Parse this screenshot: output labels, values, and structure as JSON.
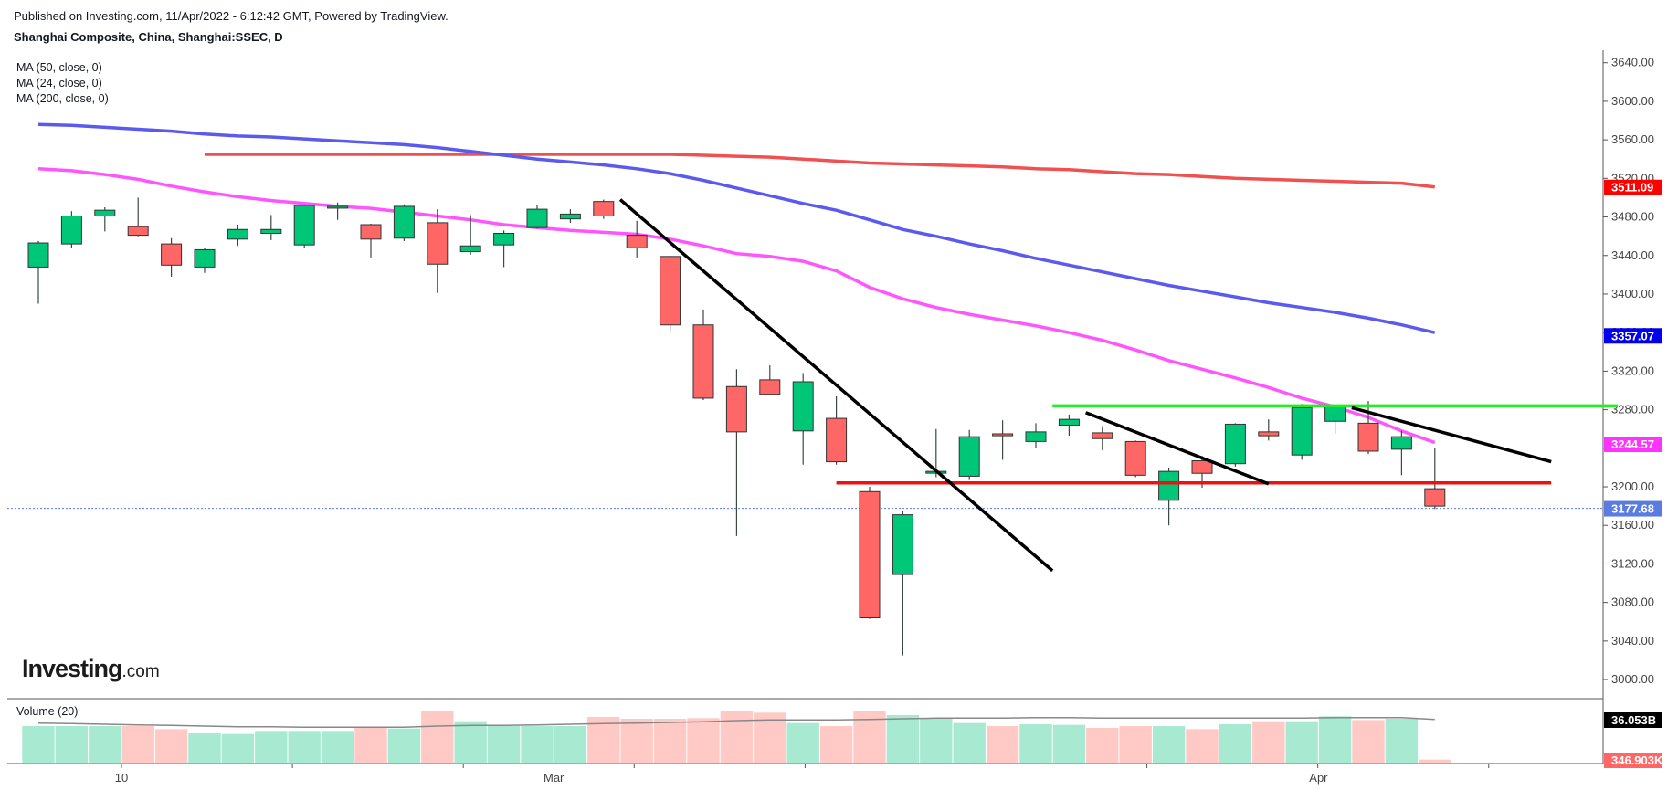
{
  "header": {
    "published": "Published on Investing.com, 11/Apr/2022 - 6:12:42 GMT, Powered by TradingView.",
    "instrument": "Shanghai Composite, China, Shanghai:SSEC, D"
  },
  "indicators": {
    "ma50": "MA (50, close, 0)",
    "ma24": "MA (24, close, 0)",
    "ma200": "MA (200, close, 0)",
    "volume": "Volume (20)"
  },
  "logo": {
    "brand": "Investing",
    "suffix": ".com"
  },
  "colors": {
    "up": "#00c777",
    "down": "#ff6666",
    "ma50": "#5a5aee",
    "ma24": "#ff55ff",
    "ma200": "#f05050",
    "vol_up": "#a8ead1",
    "vol_down": "#ffc9c6"
  },
  "badges": {
    "ma200": {
      "text": "3511.09",
      "color": "#ff0000"
    },
    "ma50": {
      "text": "3357.07",
      "color": "#0000ee"
    },
    "ma24": {
      "text": "3244.57",
      "color": "#ff33ff"
    },
    "last": {
      "text": "3177.68",
      "color": "#5a7be0"
    },
    "volume": {
      "text": "36.053B",
      "color": "#000000"
    },
    "volume2": {
      "text": "346.903K",
      "color": "#ff6666"
    }
  },
  "chart_data": {
    "type": "candlestick",
    "y_ticks": [
      "3640.00",
      "3600.00",
      "3560.00",
      "3520.00",
      "3480.00",
      "3440.00",
      "3400.00",
      "3360.00",
      "3320.00",
      "3280.00",
      "3240.00",
      "3200.00",
      "3160.00",
      "3120.00",
      "3080.00",
      "3040.00",
      "3000.00"
    ],
    "ylim": [
      2983,
      3653
    ],
    "x_labels": [
      {
        "text": "10",
        "index": 2.5
      },
      {
        "text": "Mar",
        "index": 15.5
      },
      {
        "text": "Apr",
        "index": 38.5
      }
    ],
    "candles": [
      {
        "o": 3428,
        "h": 3455,
        "l": 3390,
        "c": 3453
      },
      {
        "o": 3452,
        "h": 3486,
        "l": 3448,
        "c": 3481
      },
      {
        "o": 3481,
        "h": 3490,
        "l": 3465,
        "c": 3487
      },
      {
        "o": 3470,
        "h": 3500,
        "l": 3460,
        "c": 3461
      },
      {
        "o": 3452,
        "h": 3458,
        "l": 3418,
        "c": 3430
      },
      {
        "o": 3428,
        "h": 3448,
        "l": 3422,
        "c": 3446
      },
      {
        "o": 3457,
        "h": 3472,
        "l": 3450,
        "c": 3467
      },
      {
        "o": 3463,
        "h": 3482,
        "l": 3456,
        "c": 3467
      },
      {
        "o": 3451,
        "h": 3493,
        "l": 3448,
        "c": 3492
      },
      {
        "o": 3490,
        "h": 3495,
        "l": 3477,
        "c": 3491
      },
      {
        "o": 3472,
        "h": 3473,
        "l": 3438,
        "c": 3457
      },
      {
        "o": 3458,
        "h": 3493,
        "l": 3455,
        "c": 3491
      },
      {
        "o": 3474,
        "h": 3488,
        "l": 3401,
        "c": 3431
      },
      {
        "o": 3444,
        "h": 3482,
        "l": 3441,
        "c": 3450
      },
      {
        "o": 3451,
        "h": 3466,
        "l": 3428,
        "c": 3463
      },
      {
        "o": 3469,
        "h": 3492,
        "l": 3468,
        "c": 3488
      },
      {
        "o": 3478,
        "h": 3488,
        "l": 3474,
        "c": 3483
      },
      {
        "o": 3496,
        "h": 3498,
        "l": 3478,
        "c": 3481
      },
      {
        "o": 3461,
        "h": 3476,
        "l": 3438,
        "c": 3448
      },
      {
        "o": 3439,
        "h": 3440,
        "l": 3360,
        "c": 3368
      },
      {
        "o": 3368,
        "h": 3384,
        "l": 3290,
        "c": 3292
      },
      {
        "o": 3304,
        "h": 3322,
        "l": 3149,
        "c": 3257
      },
      {
        "o": 3311,
        "h": 3326,
        "l": 3298,
        "c": 3296
      },
      {
        "o": 3258,
        "h": 3318,
        "l": 3223,
        "c": 3309
      },
      {
        "o": 3271,
        "h": 3294,
        "l": 3223,
        "c": 3226
      },
      {
        "o": 3195,
        "h": 3200,
        "l": 3063,
        "c": 3064
      },
      {
        "o": 3109,
        "h": 3175,
        "l": 3025,
        "c": 3171
      },
      {
        "o": 3216,
        "h": 3260,
        "l": 3210,
        "c": 3216
      },
      {
        "o": 3211,
        "h": 3259,
        "l": 3207,
        "c": 3252
      },
      {
        "o": 3255,
        "h": 3269,
        "l": 3228,
        "c": 3253
      },
      {
        "o": 3247,
        "h": 3266,
        "l": 3240,
        "c": 3257
      },
      {
        "o": 3264,
        "h": 3275,
        "l": 3253,
        "c": 3270
      },
      {
        "o": 3256,
        "h": 3263,
        "l": 3238,
        "c": 3250
      },
      {
        "o": 3247,
        "h": 3248,
        "l": 3210,
        "c": 3212
      },
      {
        "o": 3186,
        "h": 3220,
        "l": 3160,
        "c": 3216
      },
      {
        "o": 3227,
        "h": 3232,
        "l": 3199,
        "c": 3214
      },
      {
        "o": 3224,
        "h": 3266,
        "l": 3221,
        "c": 3265
      },
      {
        "o": 3257,
        "h": 3270,
        "l": 3248,
        "c": 3253
      },
      {
        "o": 3233,
        "h": 3286,
        "l": 3228,
        "c": 3282
      },
      {
        "o": 3268,
        "h": 3285,
        "l": 3255,
        "c": 3283
      },
      {
        "o": 3266,
        "h": 3289,
        "l": 3234,
        "c": 3237
      },
      {
        "o": 3239,
        "h": 3258,
        "l": 3212,
        "c": 3252
      },
      {
        "o": 3198,
        "h": 3240,
        "l": 3177,
        "c": 3180
      }
    ],
    "ma50": [
      3576,
      3575,
      3573,
      3571,
      3569,
      3566,
      3564,
      3563,
      3561,
      3559,
      3557,
      3555,
      3552,
      3548,
      3544,
      3540,
      3537,
      3534,
      3530,
      3525,
      3518,
      3510,
      3502,
      3494,
      3487,
      3477,
      3467,
      3460,
      3452,
      3445,
      3437,
      3430,
      3423,
      3416,
      3409,
      3403,
      3397,
      3391,
      3386,
      3381,
      3375,
      3368,
      3360
    ],
    "ma24": [
      3530,
      3528,
      3524,
      3519,
      3512,
      3506,
      3501,
      3497,
      3494,
      3491,
      3489,
      3485,
      3481,
      3477,
      3472,
      3469,
      3466,
      3464,
      3462,
      3457,
      3450,
      3442,
      3439,
      3434,
      3424,
      3407,
      3395,
      3386,
      3379,
      3373,
      3367,
      3360,
      3352,
      3342,
      3331,
      3322,
      3313,
      3303,
      3292,
      3283,
      3272,
      3258,
      3246
    ],
    "ma200": [
      null,
      null,
      null,
      null,
      null,
      3545,
      3545,
      3545,
      3545,
      3545,
      3545,
      3545,
      3545,
      3545,
      3545,
      3545,
      3545,
      3545,
      3545,
      3545,
      3544,
      3543,
      3542,
      3540,
      3538,
      3536,
      3535,
      3534,
      3533,
      3532,
      3530,
      3529,
      3527,
      3525,
      3524,
      3522,
      3520,
      3519,
      3518,
      3517,
      3516,
      3515,
      3511
    ],
    "volume": [
      0.6,
      0.6,
      0.6,
      0.6,
      0.55,
      0.48,
      0.47,
      0.52,
      0.52,
      0.52,
      0.58,
      0.56,
      0.85,
      0.68,
      0.6,
      0.6,
      0.6,
      0.75,
      0.72,
      0.72,
      0.73,
      0.85,
      0.82,
      0.65,
      0.6,
      0.85,
      0.78,
      0.72,
      0.65,
      0.6,
      0.63,
      0.62,
      0.57,
      0.6,
      0.6,
      0.55,
      0.63,
      0.68,
      0.68,
      0.76,
      0.7,
      0.72,
      0.05
    ],
    "volume_ma": [
      0.65,
      0.64,
      0.63,
      0.62,
      0.61,
      0.6,
      0.59,
      0.59,
      0.58,
      0.58,
      0.58,
      0.58,
      0.6,
      0.61,
      0.61,
      0.62,
      0.63,
      0.64,
      0.65,
      0.66,
      0.67,
      0.69,
      0.7,
      0.7,
      0.7,
      0.71,
      0.72,
      0.73,
      0.73,
      0.73,
      0.74,
      0.74,
      0.73,
      0.73,
      0.73,
      0.73,
      0.73,
      0.73,
      0.73,
      0.74,
      0.74,
      0.74,
      0.71
    ],
    "annotations": {
      "downtrend_1": [
        [
          17.5,
          3498
        ],
        [
          30.5,
          3113
        ]
      ],
      "downtrend_2": [
        [
          31.5,
          3277
        ],
        [
          37,
          3203
        ]
      ],
      "downtrend_3": [
        [
          39.5,
          3282
        ],
        [
          45.5,
          3226
        ]
      ],
      "support": [
        [
          24,
          3204
        ],
        [
          45.5,
          3204
        ]
      ],
      "resistance": [
        [
          30.5,
          3284
        ],
        [
          47.5,
          3284
        ]
      ]
    }
  }
}
